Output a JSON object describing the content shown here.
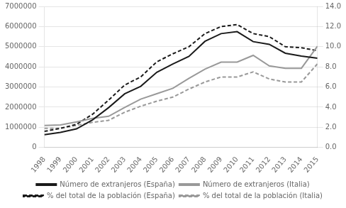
{
  "chart_data": {
    "type": "line",
    "x": [
      1998,
      1999,
      2000,
      2001,
      2002,
      2003,
      2004,
      2005,
      2006,
      2007,
      2008,
      2009,
      2010,
      2011,
      2012,
      2013,
      2014,
      2015
    ],
    "xlim": [
      1998,
      2015
    ],
    "xticks": [
      1998,
      1999,
      2000,
      2001,
      2002,
      2003,
      2004,
      2005,
      2006,
      2007,
      2008,
      2009,
      2010,
      2011,
      2012,
      2013,
      2014,
      2015
    ],
    "ylim": [
      0,
      7000000
    ],
    "yticks": [
      0,
      1000000,
      2000000,
      3000000,
      4000000,
      5000000,
      6000000,
      7000000
    ],
    "y2lim": [
      0,
      14.0
    ],
    "y2ticks": [
      {
        "value": 0,
        "label": "0.0"
      },
      {
        "value": 2,
        "label": "2.0"
      },
      {
        "value": 4,
        "label": "4.0"
      },
      {
        "value": 6,
        "label": "6.0"
      },
      {
        "value": 8,
        "label": "8.0"
      },
      {
        "value": 10,
        "label": "10.0"
      },
      {
        "value": 12,
        "label": "12.0"
      },
      {
        "value": 14,
        "label": "14.0"
      }
    ],
    "grid": true,
    "legend": "bottom",
    "series": [
      {
        "name": "Número de extranjeros (España)",
        "color": "#1a1a1a",
        "line_style": "solid",
        "values": [
          637085,
          748954,
          923879,
          1370657,
          1977946,
          2664168,
          3034326,
          3730610,
          4144166,
          4519554,
          5268762,
          5648671,
          5747734,
          5251094,
          5118623,
          4676022,
          4538503,
          4426264
        ]
      },
      {
        "name": "Número de extranjeros (Italia)",
        "color": "#999999",
        "line_style": "solid",
        "values": [
          1090820,
          1116394,
          1270553,
          1448392,
          1549373,
          1990159,
          2402157,
          2670514,
          2938922,
          3432651,
          3891295,
          4235059,
          4235059,
          4570317,
          4052081,
          3929916,
          3929916,
          5026153
        ]
      },
      {
        "name": "% del total de la población (España)",
        "color": "#1a1a1a",
        "line_style": "dashed",
        "axis": "y2",
        "values": [
          1.6,
          1.9,
          2.3,
          3.3,
          4.7,
          6.2,
          7.0,
          8.5,
          9.3,
          10.0,
          11.3,
          12.0,
          12.2,
          11.3,
          11.0,
          10.0,
          9.9,
          9.6
        ]
      },
      {
        "name": "% del total de la población (Italia)",
        "color": "#999999",
        "line_style": "dashed",
        "axis": "y2",
        "values": [
          1.9,
          1.9,
          2.2,
          2.5,
          2.7,
          3.5,
          4.1,
          4.6,
          5.0,
          5.8,
          6.5,
          7.0,
          7.0,
          7.5,
          6.8,
          6.5,
          6.5,
          8.3
        ]
      }
    ]
  }
}
